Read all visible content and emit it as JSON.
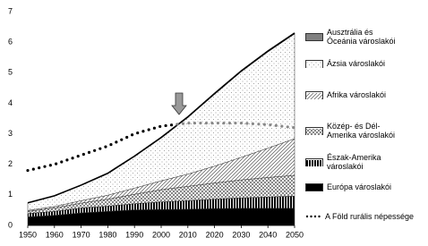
{
  "chart_data": {
    "type": "stacked-area",
    "x": [
      1950,
      1960,
      1970,
      1980,
      1990,
      2000,
      2010,
      2020,
      2030,
      2040,
      2050
    ],
    "xlim": [
      1950,
      2050
    ],
    "xticks": [
      1950,
      1960,
      1970,
      1980,
      1990,
      2000,
      2010,
      2020,
      2030,
      2040,
      2050
    ],
    "ylim": [
      0,
      7
    ],
    "yticks": [
      0,
      1,
      2,
      3,
      4,
      5,
      6,
      7
    ],
    "grid": false,
    "legend": "right",
    "series": [
      {
        "name": "Európa városlakói",
        "color": "#000000",
        "pattern": "solid",
        "values": [
          0.28,
          0.33,
          0.41,
          0.46,
          0.51,
          0.52,
          0.53,
          0.55,
          0.56,
          0.56,
          0.56
        ]
      },
      {
        "name": "Észak-Amerika városlakói",
        "color": "#000000",
        "pattern": "vlines",
        "values": [
          0.11,
          0.13,
          0.16,
          0.17,
          0.2,
          0.25,
          0.28,
          0.31,
          0.34,
          0.37,
          0.4
        ]
      },
      {
        "name": "Közép- és Dél-Amerika városlakói",
        "color": "#555555",
        "pattern": "crosshatch",
        "values": [
          0.07,
          0.11,
          0.16,
          0.23,
          0.31,
          0.4,
          0.47,
          0.53,
          0.59,
          0.64,
          0.68
        ]
      },
      {
        "name": "Afrika városlakói",
        "color": "#666666",
        "pattern": "diag",
        "values": [
          0.03,
          0.05,
          0.08,
          0.13,
          0.2,
          0.29,
          0.4,
          0.55,
          0.74,
          0.96,
          1.2
        ]
      },
      {
        "name": "Ázsia városlakói",
        "color": "#888888",
        "pattern": "dots",
        "values": [
          0.24,
          0.34,
          0.5,
          0.7,
          1.03,
          1.4,
          1.85,
          2.35,
          2.8,
          3.15,
          3.43
        ]
      },
      {
        "name": "Ausztrália és Óceánia városlakói",
        "color": "#808080",
        "pattern": "solid",
        "values": [
          0.01,
          0.01,
          0.01,
          0.02,
          0.02,
          0.02,
          0.025,
          0.03,
          0.03,
          0.03,
          0.03
        ]
      }
    ],
    "line_series": {
      "name": "A Föld rurális népessége",
      "color": "#000000",
      "values": [
        1.8,
        2.0,
        2.3,
        2.6,
        3.0,
        3.25,
        3.35,
        3.35,
        3.35,
        3.3,
        3.2
      ]
    }
  }
}
